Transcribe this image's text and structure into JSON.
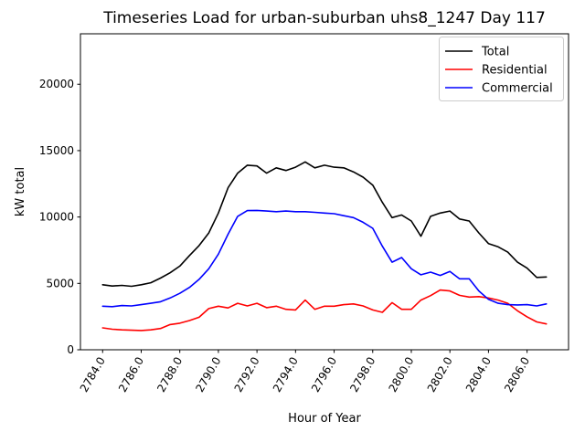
{
  "figure": {
    "title": "Timeseries Load for urban-suburban uhs8_1247  Day 117",
    "background_color": "#ffffff",
    "axes_edge_color": "#000000"
  },
  "legend": {
    "position": "upper right",
    "border_color": "#cccccc",
    "entries": [
      {
        "label": "Total",
        "color": "#000000"
      },
      {
        "label": "Residential",
        "color": "#ff0000"
      },
      {
        "label": "Commercial",
        "color": "#0000ff"
      }
    ]
  },
  "chart_data": {
    "type": "line",
    "title": "Timeseries Load for urban-suburban uhs8_1247  Day 117",
    "xlabel": "Hour of Year",
    "ylabel": "kW total",
    "xlim": [
      2782.85,
      2808.15
    ],
    "ylim": [
      0,
      23800
    ],
    "grid": false,
    "legend_position": "upper right",
    "x_ticks": [
      2784,
      2786,
      2788,
      2790,
      2792,
      2794,
      2796,
      2798,
      2800,
      2802,
      2804,
      2806
    ],
    "x_tick_labels": [
      "2784.0",
      "2786.0",
      "2788.0",
      "2790.0",
      "2792.0",
      "2794.0",
      "2796.0",
      "2798.0",
      "2800.0",
      "2802.0",
      "2804.0",
      "2806.0"
    ],
    "x_tick_rotation_deg": 60,
    "y_ticks": [
      0,
      5000,
      10000,
      15000,
      20000
    ],
    "y_tick_labels": [
      "0",
      "5000",
      "10000",
      "15000",
      "20000"
    ],
    "x": [
      2784.0,
      2784.5,
      2785.0,
      2785.5,
      2786.0,
      2786.5,
      2787.0,
      2787.5,
      2788.0,
      2788.5,
      2789.0,
      2789.5,
      2790.0,
      2790.5,
      2791.0,
      2791.5,
      2792.0,
      2792.5,
      2793.0,
      2793.5,
      2794.0,
      2794.5,
      2795.0,
      2795.5,
      2796.0,
      2796.5,
      2797.0,
      2797.5,
      2798.0,
      2798.5,
      2799.0,
      2799.5,
      2800.0,
      2800.5,
      2801.0,
      2801.5,
      2802.0,
      2802.5,
      2803.0,
      2803.5,
      2804.0,
      2804.5,
      2805.0,
      2805.5,
      2806.0,
      2806.5,
      2807.0
    ],
    "series": [
      {
        "name": "Total",
        "color": "#000000",
        "values": [
          4900,
          4800,
          4850,
          4780,
          4900,
          5050,
          5400,
          5800,
          6300,
          7100,
          7850,
          8800,
          10300,
          12200,
          13300,
          13900,
          13850,
          13300,
          13700,
          13500,
          13750,
          14150,
          13700,
          13900,
          13750,
          13700,
          13400,
          13000,
          12400,
          11100,
          9950,
          10150,
          9700,
          8550,
          10050,
          10300,
          10450,
          9850,
          9700,
          8800,
          8000,
          7750,
          7350,
          6600,
          6150,
          5450,
          5480
        ]
      },
      {
        "name": "Residential",
        "color": "#ff0000",
        "values": [
          1650,
          1550,
          1500,
          1470,
          1450,
          1500,
          1600,
          1900,
          2000,
          2200,
          2450,
          3100,
          3280,
          3150,
          3500,
          3300,
          3500,
          3170,
          3280,
          3050,
          3000,
          3740,
          3050,
          3280,
          3280,
          3400,
          3450,
          3300,
          3000,
          2820,
          3550,
          3050,
          3050,
          3740,
          4080,
          4500,
          4430,
          4100,
          3970,
          4000,
          3900,
          3740,
          3500,
          2940,
          2480,
          2100,
          1950
        ]
      },
      {
        "name": "Commercial",
        "color": "#0000ff",
        "values": [
          3280,
          3250,
          3330,
          3300,
          3400,
          3500,
          3620,
          3900,
          4250,
          4700,
          5300,
          6100,
          7200,
          8700,
          10050,
          10480,
          10500,
          10450,
          10400,
          10450,
          10400,
          10400,
          10350,
          10300,
          10250,
          10100,
          9950,
          9600,
          9150,
          7800,
          6600,
          6950,
          6100,
          5650,
          5850,
          5600,
          5900,
          5345,
          5345,
          4430,
          3800,
          3500,
          3400,
          3380,
          3400,
          3300,
          3450
        ]
      }
    ]
  }
}
